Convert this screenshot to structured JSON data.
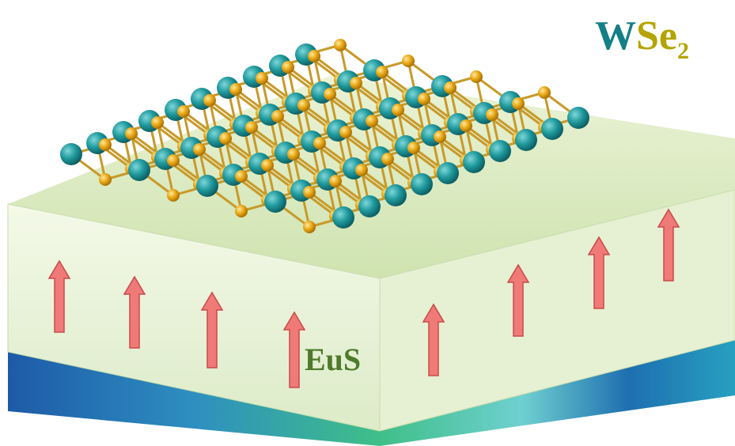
{
  "material_label": {
    "element_1": "W",
    "element_2": "Se",
    "subscript": "2"
  },
  "substrate_label": "EuS"
}
